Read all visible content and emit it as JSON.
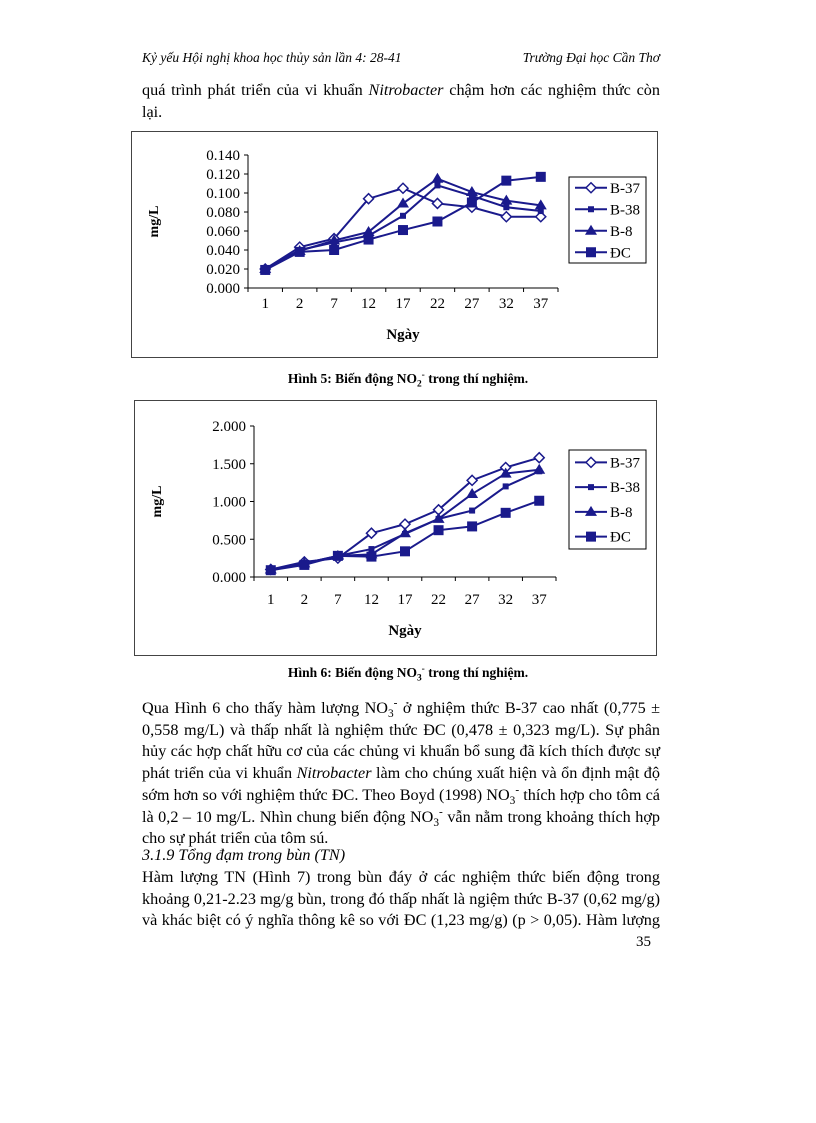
{
  "header": {
    "left": "Kỷ yếu Hội nghị khoa học thủy sản lần 4: 28-41",
    "right": "Trường Đại học Cần Thơ"
  },
  "intro_lines": [
    [
      "quá trình phát triển của vi khuẩn ",
      {
        "i": "Nitrobacter"
      },
      " chậm hơn các nghiệm thức còn"
    ],
    [
      "lại."
    ]
  ],
  "figure5_caption": [
    "Hình 5: Biến động NO",
    {
      "sub": "2"
    },
    {
      "sup": "-"
    },
    " trong thí nghiệm."
  ],
  "figure6_caption": [
    "Hình 6: Biến động NO",
    {
      "sub": "3"
    },
    {
      "sup": "-"
    },
    " trong thí nghiệm."
  ],
  "paragraph1": [
    [
      "Qua Hình 6 cho thấy hàm lượng NO",
      {
        "sub": "3"
      },
      {
        "sup": "-"
      },
      " ở nghiệm thức B-37 cao nhất (0,775 ±"
    ],
    [
      "0,558 mg/L) và thấp nhất là nghiệm thức ĐC (0,478 ± 0,323 mg/L). Sự phân"
    ],
    [
      "hủy các hợp chất hữu cơ của các chủng vi khuẩn bổ sung đã kích thích được sự"
    ],
    [
      "phát triển của vi khuẩn ",
      {
        "i": "Nitrobacter"
      },
      " làm cho chúng xuất hiện và ổn định mật độ"
    ],
    [
      "sớm hơn so với nghiệm thức ĐC. Theo Boyd (1998) NO",
      {
        "sub": "3"
      },
      {
        "sup": "-"
      },
      " thích hợp cho tôm cá"
    ],
    [
      "là 0,2 – 10 mg/L. Nhìn chung biến động NO",
      {
        "sub": "3"
      },
      {
        "sup": "-"
      },
      " vẫn nằm trong khoảng thích hợp"
    ],
    [
      "cho sự phát triển của tôm sú."
    ]
  ],
  "section_heading": [
    {
      "i": "3.1.9   Tổng đạm trong bùn (TN)"
    }
  ],
  "paragraph2": [
    [
      "Hàm lượng TN (Hình 7) trong bùn đáy ở các nghiệm thức biến động trong"
    ],
    [
      "khoảng 0,21-2.23 mg/g bùn, trong đó thấp nhất là ngiệm thức B-37 (0,62 mg/g)"
    ],
    [
      "và khác biệt có ý nghĩa thông kê so với ĐC (1,23 mg/g) (p > 0,05). Hàm lượng"
    ]
  ],
  "page_number": "35",
  "chart_data": [
    {
      "type": "line",
      "xlabel": "Ngày",
      "ylabel": "mg/L",
      "categories": [
        "1",
        "2",
        "7",
        "12",
        "17",
        "22",
        "27",
        "32",
        "37"
      ],
      "yticks": [
        "0.000",
        "0.020",
        "0.040",
        "0.060",
        "0.080",
        "0.100",
        "0.120",
        "0.140"
      ],
      "ylim": [
        0,
        0.14
      ],
      "legend_position": "right",
      "grid": false,
      "line_color": "#1a1a8c",
      "series": [
        {
          "name": "B-37",
          "marker": "diamond-open",
          "values": [
            0.02,
            0.043,
            0.052,
            0.094,
            0.105,
            0.089,
            0.085,
            0.075,
            0.075
          ]
        },
        {
          "name": "B-38",
          "marker": "square-small",
          "values": [
            0.02,
            0.04,
            0.048,
            0.055,
            0.076,
            0.108,
            0.097,
            0.085,
            0.081
          ]
        },
        {
          "name": "B-8",
          "marker": "triangle",
          "values": [
            0.02,
            0.039,
            0.05,
            0.059,
            0.089,
            0.115,
            0.101,
            0.092,
            0.087
          ]
        },
        {
          "name": "ĐC",
          "marker": "square",
          "values": [
            0.019,
            0.038,
            0.04,
            0.051,
            0.061,
            0.07,
            0.09,
            0.113,
            0.117
          ]
        }
      ]
    },
    {
      "type": "line",
      "xlabel": "Ngày",
      "ylabel": "mg/L",
      "categories": [
        "1",
        "2",
        "7",
        "12",
        "17",
        "22",
        "27",
        "32",
        "37"
      ],
      "yticks": [
        "0.000",
        "0.500",
        "1.000",
        "1.500",
        "2.000"
      ],
      "ylim": [
        0,
        2.0
      ],
      "legend_position": "right",
      "grid": false,
      "line_color": "#1a1a8c",
      "series": [
        {
          "name": "B-37",
          "marker": "diamond-open",
          "values": [
            0.1,
            0.2,
            0.25,
            0.58,
            0.7,
            0.89,
            1.28,
            1.45,
            1.58
          ]
        },
        {
          "name": "B-38",
          "marker": "square-small",
          "values": [
            0.1,
            0.18,
            0.28,
            0.37,
            0.57,
            0.77,
            0.88,
            1.2,
            1.4
          ]
        },
        {
          "name": "B-8",
          "marker": "triangle",
          "values": [
            0.1,
            0.18,
            0.28,
            0.3,
            0.58,
            0.77,
            1.1,
            1.37,
            1.42
          ]
        },
        {
          "name": "ĐC",
          "marker": "square",
          "values": [
            0.09,
            0.16,
            0.28,
            0.27,
            0.34,
            0.62,
            0.67,
            0.85,
            1.01
          ]
        }
      ]
    }
  ]
}
